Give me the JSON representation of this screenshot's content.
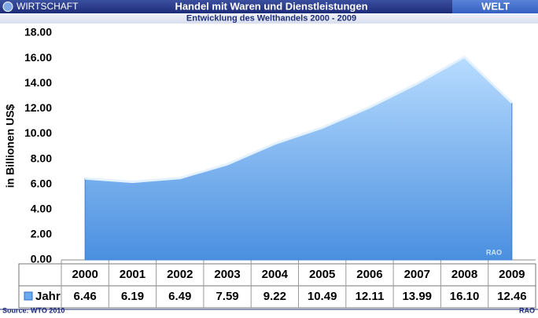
{
  "chart_data": {
    "type": "area",
    "section": "WIRTSCHAFT",
    "title": "Handel mit Waren und Dienstleistungen",
    "region": "WELT",
    "subtitle": "Entwicklung des Welthandels 2000 - 2009",
    "y_label": "in Billionen US$",
    "categories": [
      "2000",
      "2001",
      "2002",
      "2003",
      "2004",
      "2005",
      "2006",
      "2007",
      "2008",
      "2009"
    ],
    "series": [
      {
        "name": "Jahr",
        "color": "#6aaaf0",
        "values": [
          6.46,
          6.19,
          6.49,
          7.59,
          9.22,
          10.49,
          12.11,
          13.99,
          16.1,
          12.46
        ],
        "value_labels": [
          "6.46",
          "6.19",
          "6.49",
          "7.59",
          "9.22",
          "10.49",
          "12.11",
          "13.99",
          "16.10",
          "12.46"
        ]
      }
    ],
    "ylim": [
      0,
      18
    ],
    "yticks": [
      {
        "value": 0,
        "label": "0.00"
      },
      {
        "value": 2,
        "label": "2.00"
      },
      {
        "value": 4,
        "label": "4.00"
      },
      {
        "value": 6,
        "label": "6.00"
      },
      {
        "value": 8,
        "label": "8.00"
      },
      {
        "value": 10,
        "label": "10.00"
      },
      {
        "value": 12,
        "label": "12.00"
      },
      {
        "value": 14,
        "label": "14.00"
      },
      {
        "value": 16,
        "label": "16.00"
      },
      {
        "value": 18,
        "label": "18.00"
      }
    ],
    "grid": false,
    "source": "Source: WTO 2010",
    "credit": "RAO"
  }
}
